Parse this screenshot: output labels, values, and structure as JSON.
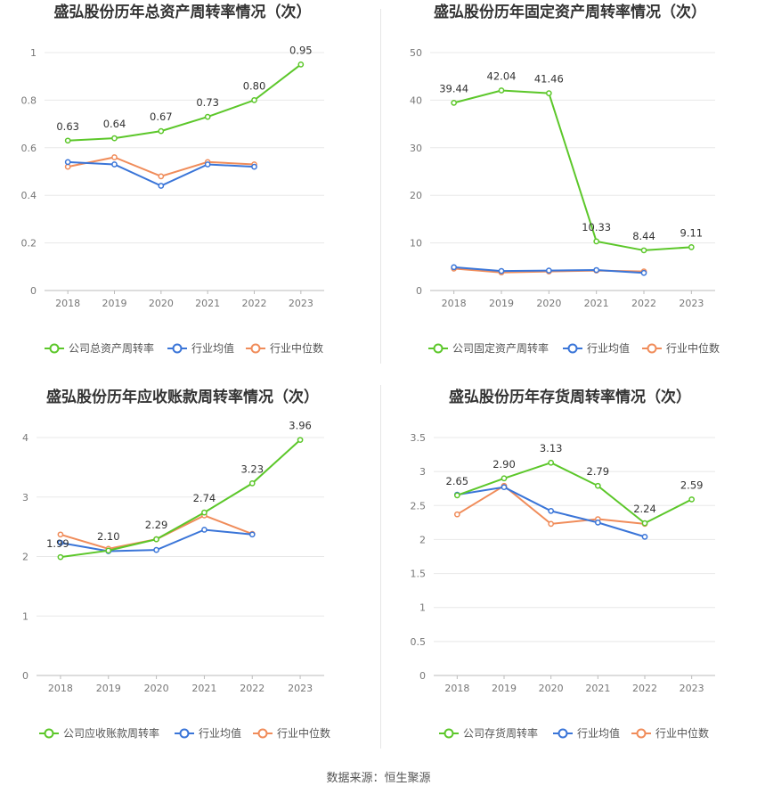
{
  "colors": {
    "company": "#5cc72a",
    "avg": "#3a75d8",
    "median": "#f08c5a",
    "grid": "#e8e8e8",
    "axis": "#bbbbbb"
  },
  "charts": [
    {
      "title": "盛弘股份历年总资产周转率情况（次）",
      "legend": [
        "公司总资产周转率",
        "行业均值",
        "行业中位数"
      ]
    },
    {
      "title": "盛弘股份历年固定资产周转率情况（次）",
      "legend": [
        "公司固定资产周转率",
        "行业均值",
        "行业中位数"
      ]
    },
    {
      "title": "盛弘股份历年应收账款周转率情况（次）",
      "legend": [
        "公司应收账款周转率",
        "行业均值",
        "行业中位数"
      ]
    },
    {
      "title": "盛弘股份历年存货周转率情况（次）",
      "legend": [
        "公司存货周转率",
        "行业均值",
        "行业中位数"
      ]
    }
  ],
  "chart_data": [
    {
      "type": "line",
      "title": "盛弘股份历年总资产周转率情况（次）",
      "categories": [
        "2018",
        "2019",
        "2020",
        "2021",
        "2022",
        "2023"
      ],
      "ylim": [
        0,
        1
      ],
      "yticks": [
        "0",
        "0.2",
        "0.4",
        "0.6",
        "0.8",
        "1"
      ],
      "series": [
        {
          "name": "公司总资产周转率",
          "values": [
            0.63,
            0.64,
            0.67,
            0.73,
            0.8,
            0.95
          ],
          "labels": [
            "0.63",
            "0.64",
            "0.67",
            "0.73",
            "0.80",
            "0.95"
          ]
        },
        {
          "name": "行业均值",
          "values": [
            0.54,
            0.53,
            0.44,
            0.53,
            0.52,
            null
          ]
        },
        {
          "name": "行业中位数",
          "values": [
            0.52,
            0.56,
            0.48,
            0.54,
            0.53,
            null
          ]
        }
      ]
    },
    {
      "type": "line",
      "title": "盛弘股份历年固定资产周转率情况（次）",
      "categories": [
        "2018",
        "2019",
        "2020",
        "2021",
        "2022",
        "2023"
      ],
      "ylim": [
        0,
        50
      ],
      "yticks": [
        "0",
        "10",
        "20",
        "30",
        "40",
        "50"
      ],
      "series": [
        {
          "name": "公司固定资产周转率",
          "values": [
            39.44,
            42.04,
            41.46,
            10.33,
            8.44,
            9.11
          ],
          "labels": [
            "39.44",
            "42.04",
            "41.46",
            "10.33",
            "8.44",
            "9.11"
          ]
        },
        {
          "name": "行业均值",
          "values": [
            4.9,
            4.1,
            4.2,
            4.3,
            3.7,
            null
          ]
        },
        {
          "name": "行业中位数",
          "values": [
            4.6,
            3.8,
            4.0,
            4.2,
            4.0,
            null
          ]
        }
      ]
    },
    {
      "type": "line",
      "title": "盛弘股份历年应收账款周转率情况（次）",
      "categories": [
        "2018",
        "2019",
        "2020",
        "2021",
        "2022",
        "2023"
      ],
      "ylim": [
        0,
        4
      ],
      "yticks": [
        "0",
        "1",
        "2",
        "3",
        "4"
      ],
      "series": [
        {
          "name": "公司应收账款周转率",
          "values": [
            1.99,
            2.1,
            2.29,
            2.74,
            3.23,
            3.96
          ],
          "labels": [
            "1.99",
            "2.10",
            "2.29",
            "2.74",
            "3.23",
            "3.96"
          ]
        },
        {
          "name": "行业均值",
          "values": [
            2.23,
            2.09,
            2.11,
            2.45,
            2.37,
            null
          ]
        },
        {
          "name": "行业中位数",
          "values": [
            2.37,
            2.13,
            2.29,
            2.69,
            2.38,
            null
          ]
        }
      ]
    },
    {
      "type": "line",
      "title": "盛弘股份历年存货周转率情况（次）",
      "categories": [
        "2018",
        "2019",
        "2020",
        "2021",
        "2022",
        "2023"
      ],
      "ylim": [
        0,
        3.5
      ],
      "yticks": [
        "0",
        "0.5",
        "1",
        "1.5",
        "2",
        "2.5",
        "3",
        "3.5"
      ],
      "series": [
        {
          "name": "公司存货周转率",
          "values": [
            2.65,
            2.9,
            3.13,
            2.79,
            2.24,
            2.59
          ],
          "labels": [
            "2.65",
            "2.90",
            "3.13",
            "2.79",
            "2.24",
            "2.59"
          ]
        },
        {
          "name": "行业均值",
          "values": [
            2.66,
            2.77,
            2.42,
            2.25,
            2.04,
            null
          ]
        },
        {
          "name": "行业中位数",
          "values": [
            2.37,
            2.79,
            2.23,
            2.3,
            2.23,
            null
          ]
        }
      ]
    }
  ],
  "footer": {
    "source": "数据来源：恒生聚源"
  }
}
